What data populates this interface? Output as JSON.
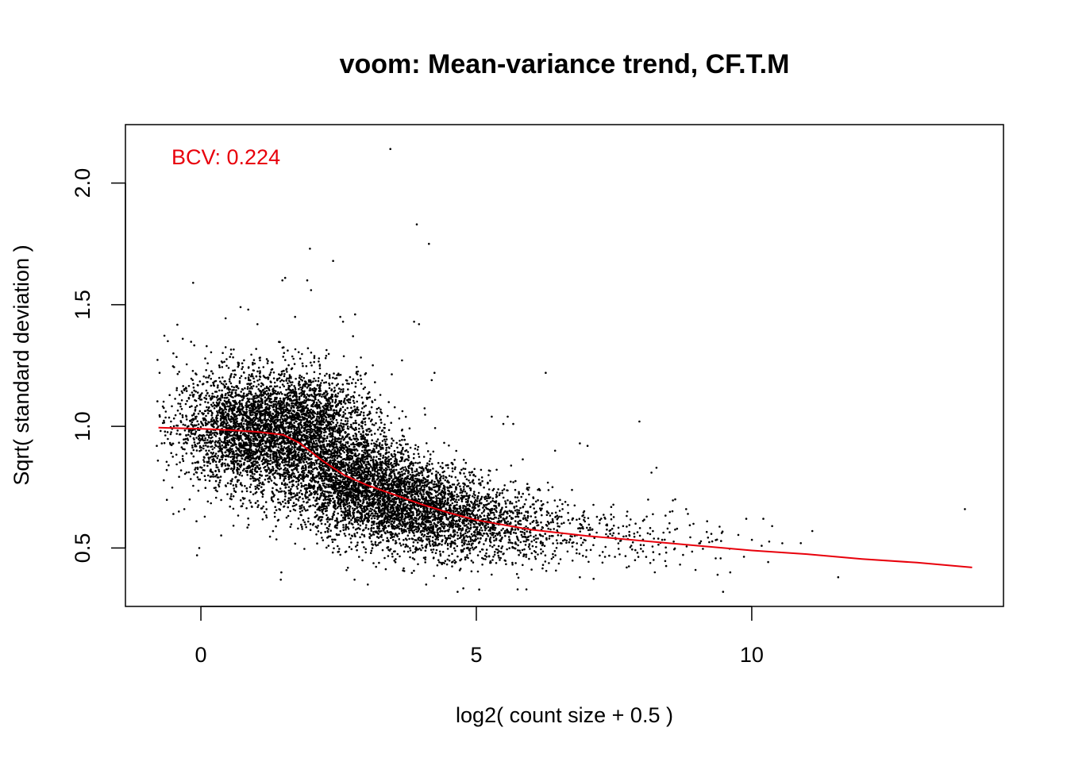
{
  "chart_data": {
    "type": "scatter",
    "title": "voom: Mean-variance trend, CF.T.M",
    "xlabel": "log2( count size + 0.5 )",
    "ylabel": "Sqrt( standard deviation )",
    "xlim": [
      -1.37,
      14.57
    ],
    "ylim": [
      0.26,
      2.24
    ],
    "x_ticks": [
      0,
      5,
      10
    ],
    "y_ticks": [
      0.5,
      1.0,
      1.5,
      2.0
    ],
    "x_tick_labels": [
      "0",
      "5",
      "10"
    ],
    "y_tick_labels": [
      "0.5",
      "1.0",
      "1.5",
      "2.0"
    ],
    "grid": false,
    "annotation": {
      "text": "BCV: 0.224",
      "color": "#e8000b"
    },
    "point_color": "#000000",
    "trend_color": "#e8000b",
    "trend": {
      "name": "",
      "x": [
        -0.77,
        0.0,
        0.5,
        1.0,
        1.5,
        1.8,
        2.2,
        2.6,
        3.0,
        3.5,
        4.0,
        4.5,
        5.0,
        6.0,
        7.0,
        8.0,
        9.0,
        10.0,
        11.0,
        12.0,
        13.0,
        14.0
      ],
      "y": [
        0.995,
        0.99,
        0.985,
        0.978,
        0.965,
        0.93,
        0.86,
        0.8,
        0.76,
        0.72,
        0.68,
        0.645,
        0.615,
        0.575,
        0.55,
        0.53,
        0.51,
        0.49,
        0.475,
        0.455,
        0.44,
        0.42
      ]
    },
    "points": [
      [
        3.44,
        2.14
      ],
      [
        3.92,
        1.83
      ],
      [
        4.14,
        1.75
      ],
      [
        1.98,
        1.73
      ],
      [
        2.4,
        1.68
      ],
      [
        1.48,
        1.6
      ],
      [
        1.53,
        1.61
      ],
      [
        1.93,
        1.6
      ],
      [
        2.0,
        1.56
      ],
      [
        -0.14,
        1.59
      ],
      [
        2.8,
        1.46
      ],
      [
        2.53,
        1.45
      ],
      [
        2.58,
        1.43
      ],
      [
        0.72,
        1.49
      ],
      [
        0.86,
        1.48
      ],
      [
        1.71,
        1.45
      ],
      [
        3.87,
        1.43
      ],
      [
        3.96,
        1.42
      ],
      [
        4.24,
        1.22
      ],
      [
        4.19,
        1.19
      ],
      [
        6.26,
        1.22
      ],
      [
        5.28,
        1.04
      ],
      [
        5.57,
        1.04
      ],
      [
        5.49,
        1.01
      ],
      [
        5.67,
        1.01
      ],
      [
        6.43,
        0.9
      ],
      [
        6.88,
        0.93
      ],
      [
        7.02,
        0.92
      ],
      [
        7.96,
        1.02
      ],
      [
        8.18,
        0.81
      ],
      [
        8.27,
        0.83
      ],
      [
        8.61,
        0.7
      ],
      [
        8.81,
        0.66
      ],
      [
        9.19,
        0.61
      ],
      [
        9.9,
        0.62
      ],
      [
        10.21,
        0.62
      ],
      [
        10.37,
        0.59
      ],
      [
        10.89,
        0.52
      ],
      [
        11.1,
        0.57
      ],
      [
        11.57,
        0.38
      ],
      [
        13.87,
        0.66
      ],
      [
        9.38,
        0.39
      ],
      [
        9.48,
        0.32
      ],
      [
        9.61,
        0.4
      ],
      [
        8.98,
        0.41
      ],
      [
        7.73,
        0.42
      ],
      [
        7.29,
        0.44
      ],
      [
        6.88,
        0.38
      ],
      [
        5.91,
        0.33
      ],
      [
        5.75,
        0.33
      ],
      [
        4.66,
        0.32
      ],
      [
        4.09,
        0.35
      ],
      [
        3.03,
        0.35
      ],
      [
        2.79,
        0.37
      ],
      [
        1.45,
        0.37
      ],
      [
        1.46,
        0.4
      ],
      [
        -0.07,
        0.47
      ],
      [
        -0.03,
        0.5
      ],
      [
        -0.08,
        0.61
      ],
      [
        0.32,
        0.76
      ],
      [
        -0.75,
        1.22
      ],
      [
        -0.6,
        1.35
      ],
      [
        -0.33,
        1.36
      ],
      [
        -0.5,
        1.3
      ],
      [
        -0.71,
        0.93
      ],
      [
        -0.8,
        0.92
      ],
      [
        -0.4,
        0.65
      ],
      [
        -0.3,
        0.66
      ],
      [
        -0.5,
        0.64
      ]
    ],
    "clusters": [
      {
        "cx": 0.8,
        "cy": 0.99,
        "sx": 0.62,
        "sy": 0.12,
        "n": 2400
      },
      {
        "cx": 1.6,
        "cy": 0.9,
        "sx": 0.55,
        "sy": 0.13,
        "n": 900
      },
      {
        "cx": 2.1,
        "cy": 1.04,
        "sx": 0.55,
        "sy": 0.1,
        "n": 1100
      },
      {
        "cx": 2.6,
        "cy": 0.8,
        "sx": 0.55,
        "sy": 0.11,
        "n": 1400
      },
      {
        "cx": 3.3,
        "cy": 0.72,
        "sx": 0.6,
        "sy": 0.1,
        "n": 1500
      },
      {
        "cx": 4.1,
        "cy": 0.65,
        "sx": 0.65,
        "sy": 0.09,
        "n": 1200
      },
      {
        "cx": 5.0,
        "cy": 0.6,
        "sx": 0.7,
        "sy": 0.08,
        "n": 700
      },
      {
        "cx": 6.1,
        "cy": 0.57,
        "sx": 0.7,
        "sy": 0.07,
        "n": 280
      },
      {
        "cx": 7.4,
        "cy": 0.55,
        "sx": 0.8,
        "sy": 0.06,
        "n": 110
      },
      {
        "cx": 8.9,
        "cy": 0.52,
        "sx": 0.8,
        "sy": 0.05,
        "n": 60
      }
    ]
  }
}
